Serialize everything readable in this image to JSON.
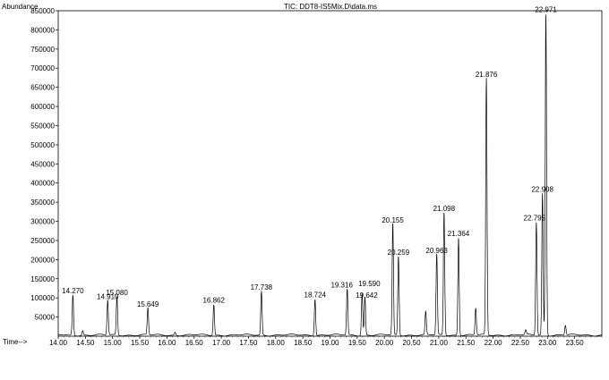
{
  "chart_data": {
    "type": "line",
    "title": "TIC: DDT8-IS5Mix.D\\data.ms",
    "ylabel": "Abundance",
    "xlabel": "Time-->",
    "xlim": [
      14.0,
      24.0
    ],
    "ylim": [
      0,
      850000
    ],
    "grid": false,
    "x_ticks": [
      "14.00",
      "14.50",
      "15.00",
      "15.50",
      "16.00",
      "16.50",
      "17.00",
      "17.50",
      "18.00",
      "18.50",
      "19.00",
      "19.50",
      "20.00",
      "20.50",
      "21.00",
      "21.50",
      "22.00",
      "22.50",
      "23.00",
      "23.50"
    ],
    "x_tick_values": [
      14.0,
      14.5,
      15.0,
      15.5,
      16.0,
      16.5,
      17.0,
      17.5,
      18.0,
      18.5,
      19.0,
      19.5,
      20.0,
      20.5,
      21.0,
      21.5,
      22.0,
      22.5,
      23.0,
      23.5
    ],
    "y_ticks": [
      "50000",
      "100000",
      "150000",
      "200000",
      "250000",
      "300000",
      "350000",
      "400000",
      "450000",
      "500000",
      "550000",
      "600000",
      "650000",
      "700000",
      "750000",
      "800000",
      "850000"
    ],
    "y_tick_values": [
      50000,
      100000,
      150000,
      200000,
      250000,
      300000,
      350000,
      400000,
      450000,
      500000,
      550000,
      600000,
      650000,
      700000,
      750000,
      800000,
      850000
    ],
    "peaks": [
      {
        "label": "14.270",
        "rt": 14.27,
        "height": 105000
      },
      {
        "label": "14.910",
        "rt": 14.91,
        "height": 90000
      },
      {
        "label": "15.080",
        "rt": 15.08,
        "height": 100000
      },
      {
        "label": "15.649",
        "rt": 15.649,
        "height": 70000
      },
      {
        "label": "16.862",
        "rt": 16.862,
        "height": 80000
      },
      {
        "label": "17.738",
        "rt": 17.738,
        "height": 115000
      },
      {
        "label": "18.724",
        "rt": 18.724,
        "height": 95000
      },
      {
        "label": "19.316",
        "rt": 19.316,
        "height": 120000
      },
      {
        "label": "19.590",
        "rt": 19.59,
        "height": 110000
      },
      {
        "label": "19.642",
        "rt": 19.642,
        "height": 100000
      },
      {
        "label": "20.155",
        "rt": 20.155,
        "height": 290000
      },
      {
        "label": "20.259",
        "rt": 20.259,
        "height": 205000
      },
      {
        "label": "20.963",
        "rt": 20.963,
        "height": 210000
      },
      {
        "label": "21.098",
        "rt": 21.098,
        "height": 320000
      },
      {
        "label": "21.364",
        "rt": 21.364,
        "height": 255000
      },
      {
        "label": "21.876",
        "rt": 21.876,
        "height": 670000
      },
      {
        "label": "22.795",
        "rt": 22.795,
        "height": 295000
      },
      {
        "label": "22.908",
        "rt": 22.908,
        "height": 370000
      },
      {
        "label": "22.971",
        "rt": 22.971,
        "height": 840000
      }
    ],
    "unlabeled_peaks": [
      {
        "rt": 20.76,
        "height": 60000
      },
      {
        "rt": 21.68,
        "height": 70000
      },
      {
        "rt": 23.33,
        "height": 25000
      },
      {
        "rt": 14.45,
        "height": 12000
      },
      {
        "rt": 16.15,
        "height": 8000
      },
      {
        "rt": 22.6,
        "height": 12000
      }
    ]
  }
}
